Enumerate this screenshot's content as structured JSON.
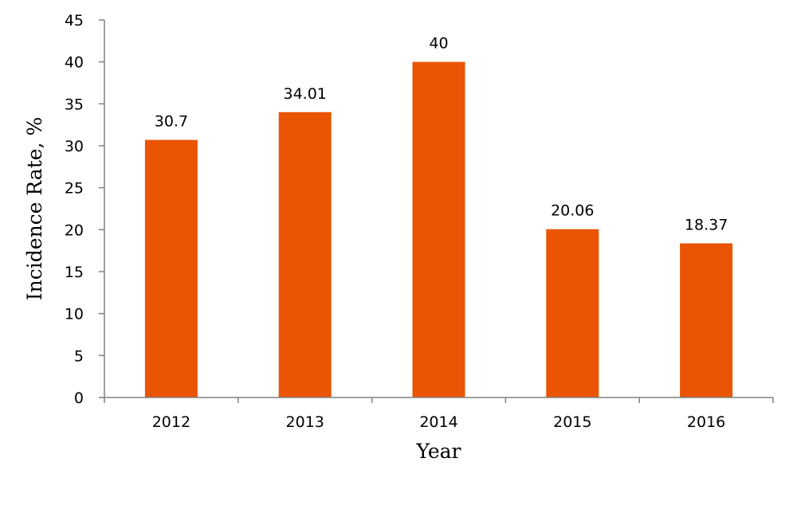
{
  "chart_data": {
    "type": "bar",
    "categories": [
      "2012",
      "2013",
      "2014",
      "2015",
      "2016"
    ],
    "values": [
      30.7,
      34.01,
      40,
      20.06,
      18.37
    ],
    "data_labels": [
      "30.7",
      "34.01",
      "40",
      "20.06",
      "18.37"
    ],
    "title": "",
    "xlabel": "Year",
    "ylabel": "Incidence Rate, %",
    "ylim": [
      0,
      45
    ],
    "yticks": [
      "0",
      "5",
      "10",
      "15",
      "20",
      "25",
      "30",
      "35",
      "40",
      "45"
    ],
    "grid": false,
    "legend": "none",
    "colors": {
      "bar": "#E95504",
      "axis": "#808080"
    }
  }
}
